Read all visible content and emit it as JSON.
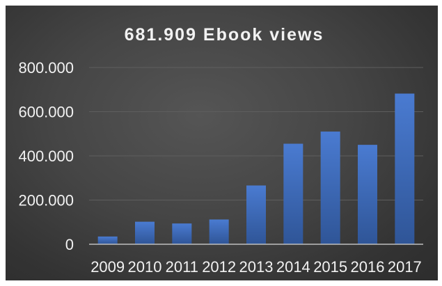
{
  "chart_data": {
    "type": "bar",
    "title": "681.909 Ebook views",
    "xlabel": "",
    "ylabel": "",
    "categories": [
      "2009",
      "2010",
      "2011",
      "2012",
      "2013",
      "2014",
      "2015",
      "2016",
      "2017"
    ],
    "values": [
      35000,
      102000,
      94000,
      112000,
      266000,
      455000,
      510000,
      450000,
      681909
    ],
    "ylim": [
      0,
      800000
    ],
    "yticks": [
      0,
      200000,
      400000,
      600000,
      800000
    ],
    "ytick_labels": [
      "0",
      "200.000",
      "400.000",
      "600.000",
      "800.000"
    ],
    "grid": true,
    "legend": "none",
    "colors": {
      "background": "#404040",
      "bar_top": "#4a7bd1",
      "bar_bottom": "#2f5597",
      "gridline": "#5e5e5e",
      "axis": "#bfbfbf",
      "text": "#f2f2f2"
    }
  }
}
